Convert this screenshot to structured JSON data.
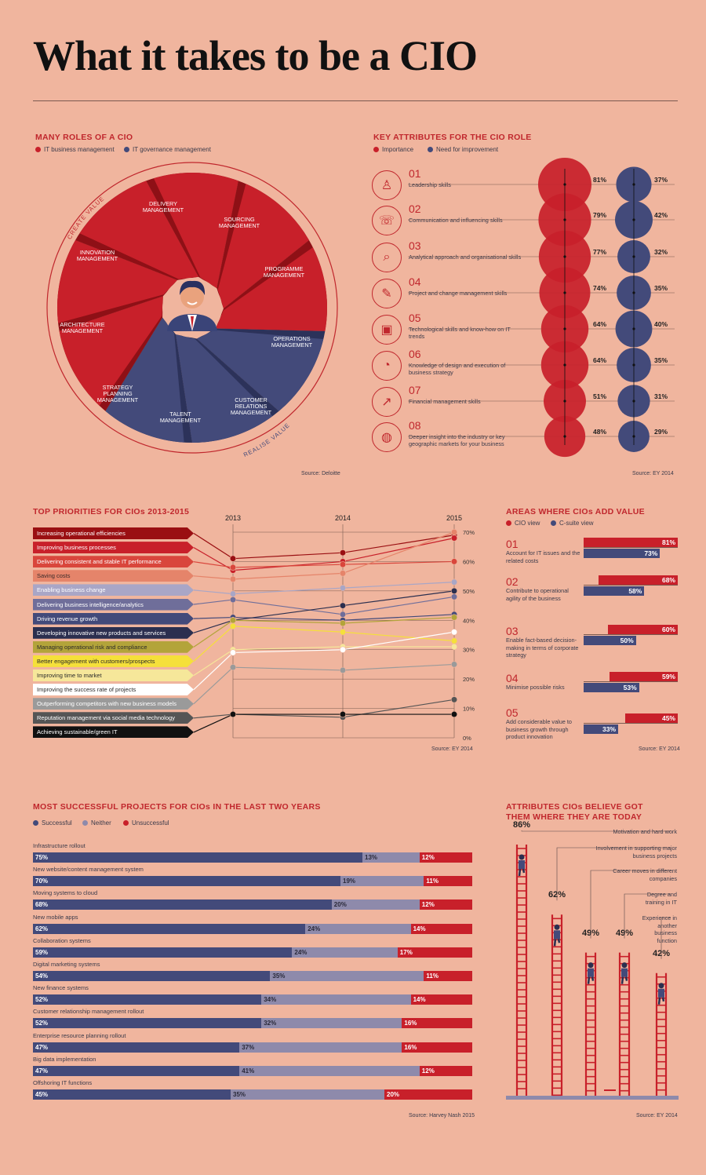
{
  "title": "What it takes to be a CIO",
  "roles": {
    "heading": "MANY ROLES OF A CIO",
    "legend": [
      "IT business management",
      "IT governance management"
    ],
    "colors": {
      "business": "#c8202a",
      "governance": "#434a7a"
    },
    "arc_labels": [
      "CREATE VALUE",
      "REALISE VALUE"
    ],
    "segments": [
      "DELIVERY MANAGEMENT",
      "SOURCING MANAGEMENT",
      "PROGRAMME MANAGEMENT",
      "OPERATIONS MANAGEMENT",
      "CUSTOMER RELATIONS MANAGEMENT",
      "TALENT MANAGEMENT",
      "STRATEGY PLANNING MANAGEMENT",
      "ARCHITECTURE MANAGEMENT",
      "INNOVATION MANAGEMENT"
    ],
    "source": "Source: Deloitte"
  },
  "attributes": {
    "heading": "KEY ATTRIBUTES FOR THE CIO ROLE",
    "legend": [
      "Importance",
      "Need for improvement"
    ],
    "source": "Source: EY 2014",
    "items": [
      {
        "num": "01",
        "label": "Leadership skills",
        "importance": "81%",
        "improvement": "37%",
        "imp": 81,
        "need": 37,
        "icon": "person-at-podium-icon",
        "glyph": "♙"
      },
      {
        "num": "02",
        "label": "Communication and influencing skills",
        "importance": "79%",
        "improvement": "42%",
        "imp": 79,
        "need": 42,
        "icon": "speech-bubble-icon",
        "glyph": "☏"
      },
      {
        "num": "03",
        "label": "Analytical approach and organisational skills",
        "importance": "77%",
        "improvement": "32%",
        "imp": 77,
        "need": 32,
        "icon": "chart-magnifier-icon",
        "glyph": "⌕"
      },
      {
        "num": "04",
        "label": "Project and change management skills",
        "importance": "74%",
        "improvement": "35%",
        "imp": 74,
        "need": 35,
        "icon": "checklist-icon",
        "glyph": "✎"
      },
      {
        "num": "05",
        "label": "Technological skills and know-how on IT trends",
        "importance": "64%",
        "improvement": "40%",
        "imp": 64,
        "need": 40,
        "icon": "devices-icon",
        "glyph": "▣"
      },
      {
        "num": "06",
        "label": "Knowledge of design and execution of business strategy",
        "importance": "64%",
        "improvement": "35%",
        "imp": 64,
        "need": 35,
        "icon": "pie-chart-icon",
        "glyph": "◔"
      },
      {
        "num": "07",
        "label": "Financial management skills",
        "importance": "51%",
        "improvement": "31%",
        "imp": 51,
        "need": 31,
        "icon": "line-graph-icon",
        "glyph": "↗"
      },
      {
        "num": "08",
        "label": "Deeper insight into the industry or key geographic markets for your business",
        "importance": "48%",
        "improvement": "29%",
        "imp": 48,
        "need": 29,
        "icon": "globe-icon",
        "glyph": "◍"
      }
    ]
  },
  "priorities": {
    "heading": "TOP PRIORITIES FOR CIOs 2013-2015",
    "source": "Source: EY 2014",
    "years": [
      "2013",
      "2014",
      "2015"
    ],
    "yticks": [
      "70%",
      "60%",
      "50%",
      "40%",
      "30%",
      "20%",
      "10%",
      "0%"
    ],
    "items": [
      {
        "label": "Increasing operational efficiencies",
        "color": "#9a0f12",
        "text": "#fff"
      },
      {
        "label": "Improving business processes",
        "color": "#c8202a",
        "text": "#fff"
      },
      {
        "label": "Delivering consistent and stable IT performance",
        "color": "#d9463c",
        "text": "#fff"
      },
      {
        "label": "Saving costs",
        "color": "#e5846a",
        "text": "#3a2a2a"
      },
      {
        "label": "Enabling business change",
        "color": "#a9a6c6",
        "text": "#fff"
      },
      {
        "label": "Delivering business intelligence/analytics",
        "color": "#6f6e9a",
        "text": "#fff"
      },
      {
        "label": "Driving revenue growth",
        "color": "#434a7a",
        "text": "#fff"
      },
      {
        "label": "Developing innovative new products and services",
        "color": "#2b2f4f",
        "text": "#fff"
      },
      {
        "label": "Managing operational risk and compliance",
        "color": "#b3a43a",
        "text": "#2a2a2a"
      },
      {
        "label": "Better engagement with customers/prospects",
        "color": "#f5e03a",
        "text": "#2a2a2a"
      },
      {
        "label": "Improving time to market",
        "color": "#f6e79a",
        "text": "#2a2a2a"
      },
      {
        "label": "Improving the success rate of projects",
        "color": "#ffffff",
        "text": "#2a2a2a"
      },
      {
        "label": "Outperforming competitors with new business models",
        "color": "#9a9a9a",
        "text": "#fff"
      },
      {
        "label": "Reputation management via social media technology",
        "color": "#555555",
        "text": "#fff"
      },
      {
        "label": "Achieving sustainable/green IT",
        "color": "#111111",
        "text": "#fff"
      }
    ]
  },
  "value": {
    "heading": "AREAS WHERE CIOs ADD VALUE",
    "legend": [
      "CIO view",
      "C-suite view"
    ],
    "source": "Source: EY 2014",
    "items": [
      {
        "num": "01",
        "label": "Account for IT issues and the related costs",
        "cio": "81%",
        "csuite": "73%"
      },
      {
        "num": "02",
        "label": "Contribute to operational agility of the business",
        "cio": "68%",
        "csuite": "58%"
      },
      {
        "num": "03",
        "label": "Enable fact-based decision-making in terms of corporate strategy",
        "cio": "60%",
        "csuite": "50%"
      },
      {
        "num": "04",
        "label": "Minimise possible risks",
        "cio": "59%",
        "csuite": "53%"
      },
      {
        "num": "05",
        "label": "Add considerable value to business growth through product innovation",
        "cio": "45%",
        "csuite": "33%"
      }
    ]
  },
  "projects": {
    "heading": "MOST SUCCESSFUL PROJECTS FOR CIOs IN THE LAST TWO YEARS",
    "legend": [
      "Successful",
      "Neither",
      "Unsuccessful"
    ],
    "source": "Source: Harvey Nash 2015",
    "items": [
      {
        "label": "Infrastructure rollout",
        "s": "75%",
        "n": "13%",
        "u": "12%"
      },
      {
        "label": "New website/content management system",
        "s": "70%",
        "n": "19%",
        "u": "11%"
      },
      {
        "label": "Moving systems to cloud",
        "s": "68%",
        "n": "20%",
        "u": "12%"
      },
      {
        "label": "New mobile apps",
        "s": "62%",
        "n": "24%",
        "u": "14%"
      },
      {
        "label": "Collaboration systems",
        "s": "59%",
        "n": "24%",
        "u": "17%"
      },
      {
        "label": "Digital marketing systems",
        "s": "54%",
        "n": "35%",
        "u": "11%"
      },
      {
        "label": "New finance systems",
        "s": "52%",
        "n": "34%",
        "u": "14%"
      },
      {
        "label": "Customer relationship management rollout",
        "s": "52%",
        "n": "32%",
        "u": "16%"
      },
      {
        "label": "Enterprise resource planning rollout",
        "s": "47%",
        "n": "37%",
        "u": "16%"
      },
      {
        "label": "Big data implementation",
        "s": "47%",
        "n": "41%",
        "u": "12%"
      },
      {
        "label": "Offshoring IT functions",
        "s": "45%",
        "n": "35%",
        "u": "20%"
      }
    ]
  },
  "ladders": {
    "heading_line1": "ATTRIBUTES CIOs BELIEVE GOT",
    "heading_line2": "THEM WHERE THEY ARE TODAY",
    "source": "Source: EY 2014",
    "items": [
      {
        "label": "Motivation and hard work",
        "pct": "86%"
      },
      {
        "label": "Involvement in supporting major business projects",
        "pct": "62%"
      },
      {
        "label": "Career moves in different companies",
        "pct": "49%"
      },
      {
        "label": "Degree and training in IT",
        "pct": "49%"
      },
      {
        "label": "Experience in another business function",
        "pct": "42%"
      }
    ]
  },
  "chart_data": [
    {
      "type": "bar",
      "title": "KEY ATTRIBUTES FOR THE CIO ROLE",
      "categories": [
        "Leadership skills",
        "Communication and influencing skills",
        "Analytical approach and organisational skills",
        "Project and change management skills",
        "Technological skills and know-how on IT trends",
        "Knowledge of design and execution of business strategy",
        "Financial management skills",
        "Deeper insight into the industry or key geographic markets for your business"
      ],
      "series": [
        {
          "name": "Importance",
          "values": [
            81,
            79,
            77,
            74,
            64,
            64,
            51,
            48
          ]
        },
        {
          "name": "Need for improvement",
          "values": [
            37,
            42,
            32,
            35,
            40,
            35,
            31,
            29
          ]
        }
      ]
    },
    {
      "type": "line",
      "title": "TOP PRIORITIES FOR CIOs 2013-2015",
      "x": [
        2013,
        2014,
        2015
      ],
      "ylim": [
        0,
        70
      ],
      "series": [
        {
          "name": "Increasing operational efficiencies",
          "values": [
            61,
            63,
            69
          ]
        },
        {
          "name": "Improving business processes",
          "values": [
            57,
            60,
            68
          ]
        },
        {
          "name": "Delivering consistent and stable IT performance",
          "values": [
            58,
            59,
            60
          ]
        },
        {
          "name": "Saving costs",
          "values": [
            54,
            56,
            70
          ]
        },
        {
          "name": "Enabling business change",
          "values": [
            49,
            51,
            53
          ]
        },
        {
          "name": "Delivering business intelligence/analytics",
          "values": [
            47,
            42,
            48
          ]
        },
        {
          "name": "Driving revenue growth",
          "values": [
            41,
            40,
            42
          ]
        },
        {
          "name": "Developing innovative new products and services",
          "values": [
            40,
            45,
            50
          ]
        },
        {
          "name": "Managing operational risk and compliance",
          "values": [
            40,
            39,
            41
          ]
        },
        {
          "name": "Better engagement with customers/prospects",
          "values": [
            38,
            36,
            33
          ]
        },
        {
          "name": "Improving time to market",
          "values": [
            30,
            31,
            31
          ]
        },
        {
          "name": "Improving the success rate of projects",
          "values": [
            29,
            30,
            36
          ]
        },
        {
          "name": "Outperforming competitors with new business models",
          "values": [
            24,
            23,
            25
          ]
        },
        {
          "name": "Reputation management via social media technology",
          "values": [
            8,
            7,
            13
          ]
        },
        {
          "name": "Achieving sustainable/green IT",
          "values": [
            8,
            8,
            8
          ]
        }
      ]
    },
    {
      "type": "bar",
      "title": "AREAS WHERE CIOs ADD VALUE",
      "categories": [
        "Account for IT issues and the related costs",
        "Contribute to operational agility of the business",
        "Enable fact-based decision-making in terms of corporate strategy",
        "Minimise possible risks",
        "Add considerable value to business growth through product innovation"
      ],
      "series": [
        {
          "name": "CIO view",
          "values": [
            81,
            68,
            60,
            59,
            45
          ]
        },
        {
          "name": "C-suite view",
          "values": [
            73,
            58,
            50,
            53,
            33
          ]
        }
      ]
    },
    {
      "type": "bar",
      "title": "MOST SUCCESSFUL PROJECTS FOR CIOs IN THE LAST TWO YEARS",
      "stacked": true,
      "categories": [
        "Infrastructure rollout",
        "New website/content management system",
        "Moving systems to cloud",
        "New mobile apps",
        "Collaboration systems",
        "Digital marketing systems",
        "New finance systems",
        "Customer relationship management rollout",
        "Enterprise resource planning rollout",
        "Big data implementation",
        "Offshoring IT functions"
      ],
      "series": [
        {
          "name": "Successful",
          "values": [
            75,
            70,
            68,
            62,
            59,
            54,
            52,
            52,
            47,
            47,
            45
          ]
        },
        {
          "name": "Neither",
          "values": [
            13,
            19,
            20,
            24,
            24,
            35,
            34,
            32,
            37,
            41,
            35
          ]
        },
        {
          "name": "Unsuccessful",
          "values": [
            12,
            11,
            12,
            14,
            17,
            11,
            14,
            16,
            16,
            12,
            20
          ]
        }
      ]
    },
    {
      "type": "bar",
      "title": "ATTRIBUTES CIOs BELIEVE GOT THEM WHERE THEY ARE TODAY",
      "categories": [
        "Motivation and hard work",
        "Involvement in supporting major business projects",
        "Career moves in different companies",
        "Degree and training in IT",
        "Experience in another business function"
      ],
      "values": [
        86,
        62,
        49,
        49,
        42
      ]
    }
  ]
}
